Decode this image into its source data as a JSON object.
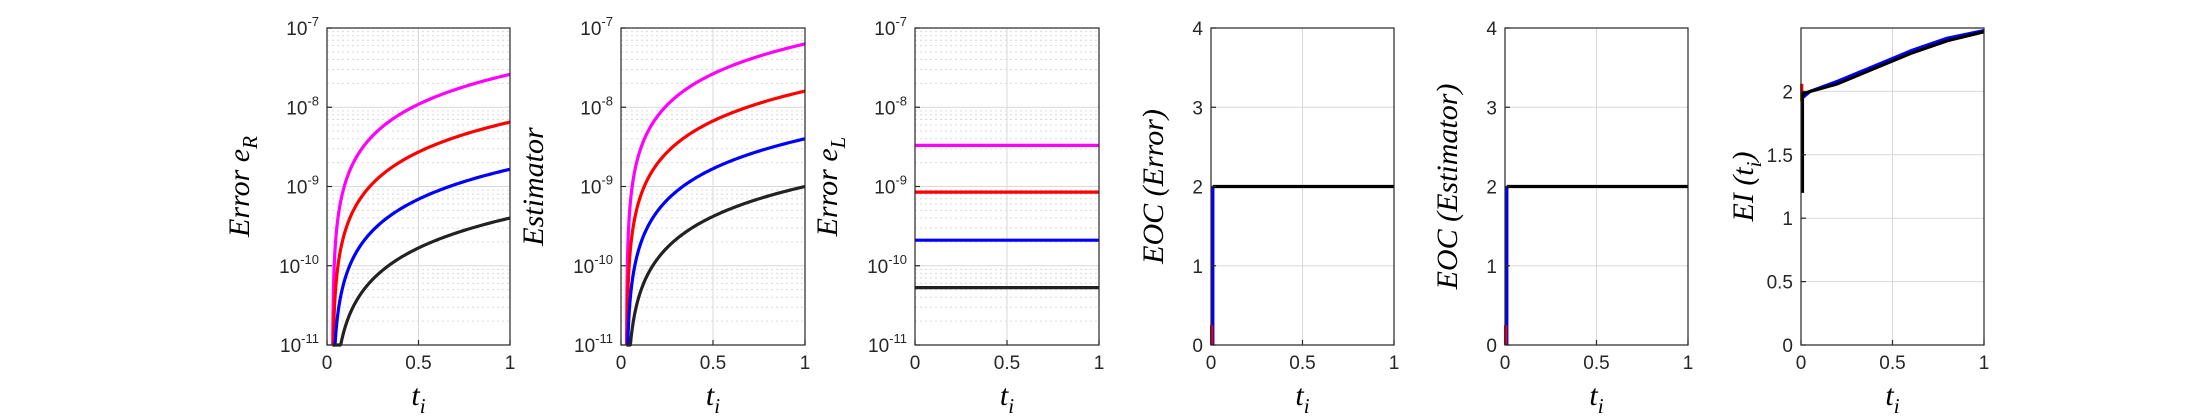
{
  "chart_data": [
    {
      "type": "line",
      "yscale": "log",
      "ylabel": "Error e_R",
      "ylabel_main": "Error",
      "ylabel_sub": "e",
      "ylabel_subsub": "R",
      "xlabel_main": "t",
      "xlabel_sub": "i",
      "xlim": [
        0,
        1
      ],
      "ylim": [
        1e-11,
        1e-07
      ],
      "xticks": [
        "0",
        "0.5",
        "1"
      ],
      "yticks": [
        "10^-11",
        "10^-10",
        "10^-9",
        "10^-8",
        "10^-7"
      ],
      "grid": true,
      "series": [
        {
          "color": "#ff00ff",
          "model": "power",
          "end": 2.6e-08,
          "exponent": 1.2,
          "lead": 0.03
        },
        {
          "color": "#ff0000",
          "model": "power",
          "end": 6.5e-09,
          "exponent": 1.2,
          "lead": 0.03
        },
        {
          "color": "#0000ff",
          "model": "power",
          "end": 1.65e-09,
          "exponent": 1.2,
          "lead": 0.03
        },
        {
          "color": "#222222",
          "model": "power",
          "end": 4e-10,
          "exponent": 1.2,
          "lead": 0.03
        }
      ]
    },
    {
      "type": "line",
      "yscale": "log",
      "ylabel": "Estimator",
      "ylabel_main": "Estimator",
      "xlabel_main": "t",
      "xlabel_sub": "i",
      "xlim": [
        0,
        1
      ],
      "ylim": [
        1e-11,
        1e-07
      ],
      "xticks": [
        "0",
        "0.5",
        "1"
      ],
      "yticks": [
        "10^-11",
        "10^-10",
        "10^-9",
        "10^-8",
        "10^-7"
      ],
      "grid": true,
      "series": [
        {
          "color": "#ff00ff",
          "model": "power",
          "end": 6.3e-08,
          "exponent": 1.2,
          "lead": 0.03
        },
        {
          "color": "#ff0000",
          "model": "power",
          "end": 1.6e-08,
          "exponent": 1.2,
          "lead": 0.03
        },
        {
          "color": "#0000ff",
          "model": "power",
          "end": 4e-09,
          "exponent": 1.2,
          "lead": 0.03
        },
        {
          "color": "#222222",
          "model": "power",
          "end": 1e-09,
          "exponent": 1.2,
          "lead": 0.03
        }
      ]
    },
    {
      "type": "line",
      "yscale": "log",
      "ylabel": "Error e_L",
      "ylabel_main": "Error",
      "ylabel_sub": "e",
      "ylabel_subsub": "L",
      "xlabel_main": "t",
      "xlabel_sub": "i",
      "xlim": [
        0,
        1
      ],
      "ylim": [
        1e-11,
        1e-07
      ],
      "xticks": [
        "0",
        "0.5",
        "1"
      ],
      "yticks": [
        "10^-11",
        "10^-10",
        "10^-9",
        "10^-8",
        "10^-7"
      ],
      "grid": true,
      "series": [
        {
          "color": "#ff00ff",
          "model": "const",
          "value": 3.3e-09
        },
        {
          "color": "#ff0000",
          "model": "const",
          "value": 8.5e-10
        },
        {
          "color": "#0000ff",
          "model": "const",
          "value": 2.1e-10
        },
        {
          "color": "#222222",
          "model": "const",
          "value": 5.3e-11
        }
      ]
    },
    {
      "type": "line",
      "yscale": "linear",
      "ylabel": "EOC (Error)",
      "ylabel_main": "EOC (Error)",
      "xlabel_main": "t",
      "xlabel_sub": "i",
      "xlim": [
        0,
        1
      ],
      "ylim": [
        0,
        4
      ],
      "xticks": [
        "0",
        "0.5",
        "1"
      ],
      "yticks": [
        "0",
        "1",
        "2",
        "3",
        "4"
      ],
      "grid": true,
      "series": [
        {
          "color": "#0000ff",
          "model": "points",
          "points": [
            [
              0.01,
              0
            ],
            [
              0.01,
              2
            ]
          ]
        },
        {
          "color": "#ff0000",
          "model": "points",
          "points": [
            [
              0.003,
              0
            ],
            [
              0.003,
              0.25
            ]
          ]
        },
        {
          "color": "#000000",
          "model": "points",
          "points": [
            [
              0.01,
              2
            ],
            [
              1,
              2
            ]
          ]
        }
      ]
    },
    {
      "type": "line",
      "yscale": "linear",
      "ylabel": "EOC (Estimator)",
      "ylabel_main": "EOC (Estimator)",
      "xlabel_main": "t",
      "xlabel_sub": "i",
      "xlim": [
        0,
        1
      ],
      "ylim": [
        0,
        4
      ],
      "xticks": [
        "0",
        "0.5",
        "1"
      ],
      "yticks": [
        "0",
        "1",
        "2",
        "3",
        "4"
      ],
      "grid": true,
      "series": [
        {
          "color": "#0000ff",
          "model": "points",
          "points": [
            [
              0.01,
              0
            ],
            [
              0.01,
              2
            ]
          ]
        },
        {
          "color": "#ff0000",
          "model": "points",
          "points": [
            [
              0.003,
              0
            ],
            [
              0.003,
              0.25
            ]
          ]
        },
        {
          "color": "#000000",
          "model": "points",
          "points": [
            [
              0.01,
              2
            ],
            [
              1,
              2
            ]
          ]
        }
      ]
    },
    {
      "type": "line",
      "yscale": "linear",
      "ylabel": "EI (t_i)",
      "ylabel_main": "EI (t",
      "ylabel_sub": "i",
      "ylabel_tail": ")",
      "xlabel_main": "t",
      "xlabel_sub": "i",
      "xlim": [
        0,
        1
      ],
      "ylim": [
        0,
        2.5
      ],
      "xticks": [
        "0",
        "0.5",
        "1"
      ],
      "yticks": [
        "0",
        "0.5",
        "1",
        "1.5",
        "2"
      ],
      "grid": true,
      "series": [
        {
          "color": "#ff0000",
          "model": "points",
          "points": [
            [
              0.004,
              1.92
            ],
            [
              0.004,
              2.06
            ]
          ]
        },
        {
          "color": "#0000ff",
          "model": "points",
          "points": [
            [
              0.008,
              1.95
            ],
            [
              0.05,
              2.0
            ],
            [
              0.2,
              2.08
            ],
            [
              0.4,
              2.2
            ],
            [
              0.6,
              2.32
            ],
            [
              0.8,
              2.42
            ],
            [
              1.0,
              2.48
            ]
          ]
        },
        {
          "color": "#000000",
          "model": "points",
          "points": [
            [
              0.008,
              1.2
            ],
            [
              0.008,
              1.98
            ],
            [
              0.05,
              2.0
            ],
            [
              0.2,
              2.06
            ],
            [
              0.4,
              2.18
            ],
            [
              0.6,
              2.3
            ],
            [
              0.8,
              2.4
            ],
            [
              1.0,
              2.47
            ]
          ]
        }
      ]
    }
  ]
}
